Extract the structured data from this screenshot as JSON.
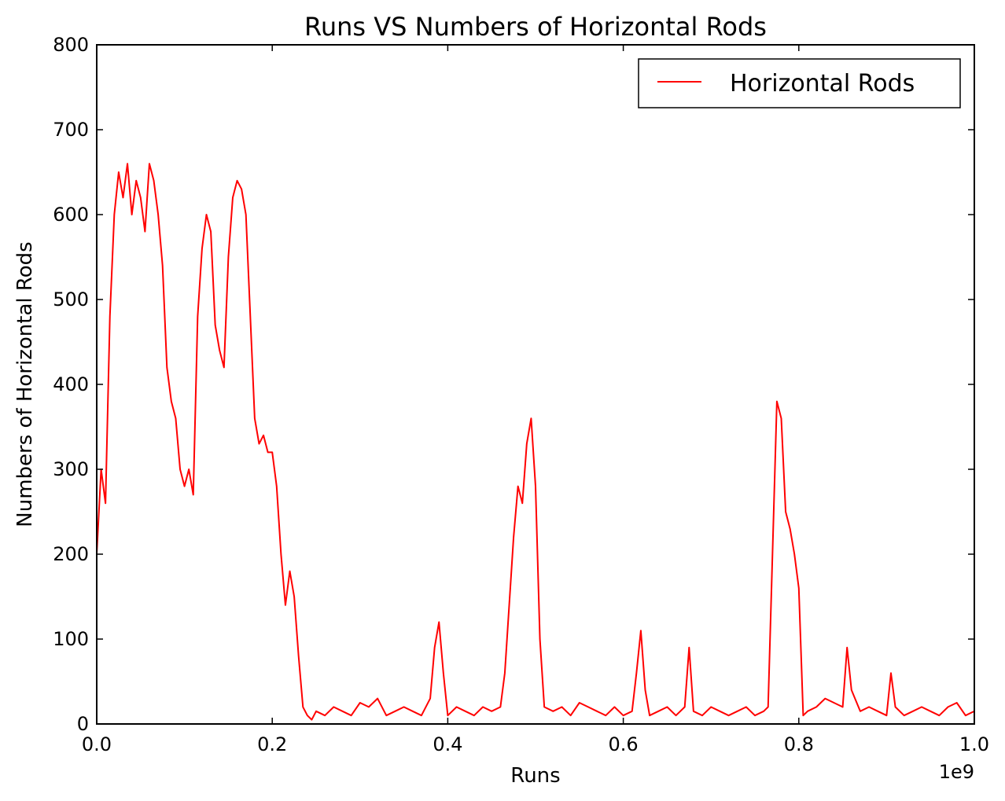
{
  "chart_data": {
    "type": "line",
    "title": "Runs VS Numbers of Horizontal Rods",
    "xlabel": "Runs",
    "ylabel": "Numbers of Horizontal Rods",
    "x_offset_label": "1e9",
    "xlim": [
      0.0,
      1.0
    ],
    "ylim": [
      0,
      800
    ],
    "x_ticks": [
      0.0,
      0.2,
      0.4,
      0.6,
      0.8,
      1.0
    ],
    "x_tick_labels": [
      "0.0",
      "0.2",
      "0.4",
      "0.6",
      "0.8",
      "1.0"
    ],
    "y_ticks": [
      0,
      100,
      200,
      300,
      400,
      500,
      600,
      700,
      800
    ],
    "y_tick_labels": [
      "0",
      "100",
      "200",
      "300",
      "400",
      "500",
      "600",
      "700",
      "800"
    ],
    "grid": false,
    "legend_position": "top-right",
    "series": [
      {
        "name": "Horizontal Rods",
        "color": "#ff0000",
        "x": [
          0.0,
          0.005,
          0.01,
          0.015,
          0.02,
          0.025,
          0.03,
          0.035,
          0.04,
          0.045,
          0.05,
          0.055,
          0.06,
          0.065,
          0.07,
          0.075,
          0.08,
          0.085,
          0.09,
          0.095,
          0.1,
          0.105,
          0.11,
          0.115,
          0.12,
          0.125,
          0.13,
          0.135,
          0.14,
          0.145,
          0.15,
          0.155,
          0.16,
          0.165,
          0.17,
          0.175,
          0.18,
          0.185,
          0.19,
          0.195,
          0.2,
          0.205,
          0.21,
          0.215,
          0.22,
          0.225,
          0.23,
          0.235,
          0.24,
          0.245,
          0.25,
          0.26,
          0.27,
          0.28,
          0.29,
          0.3,
          0.31,
          0.32,
          0.33,
          0.34,
          0.35,
          0.36,
          0.37,
          0.38,
          0.385,
          0.39,
          0.395,
          0.4,
          0.41,
          0.42,
          0.43,
          0.44,
          0.45,
          0.46,
          0.465,
          0.47,
          0.475,
          0.48,
          0.485,
          0.49,
          0.495,
          0.5,
          0.505,
          0.51,
          0.52,
          0.53,
          0.54,
          0.55,
          0.56,
          0.57,
          0.58,
          0.59,
          0.6,
          0.61,
          0.615,
          0.62,
          0.625,
          0.63,
          0.64,
          0.65,
          0.66,
          0.67,
          0.675,
          0.68,
          0.69,
          0.7,
          0.71,
          0.72,
          0.73,
          0.74,
          0.75,
          0.76,
          0.765,
          0.77,
          0.775,
          0.78,
          0.785,
          0.79,
          0.795,
          0.8,
          0.805,
          0.81,
          0.82,
          0.83,
          0.84,
          0.85,
          0.855,
          0.86,
          0.87,
          0.88,
          0.89,
          0.9,
          0.905,
          0.91,
          0.92,
          0.93,
          0.94,
          0.95,
          0.96,
          0.97,
          0.98,
          0.99,
          1.0
        ],
        "y": [
          200,
          300,
          260,
          480,
          600,
          650,
          620,
          660,
          600,
          640,
          620,
          580,
          660,
          640,
          600,
          540,
          420,
          380,
          360,
          300,
          280,
          300,
          270,
          480,
          560,
          600,
          580,
          470,
          440,
          420,
          550,
          620,
          640,
          630,
          600,
          480,
          360,
          330,
          340,
          320,
          320,
          280,
          200,
          140,
          180,
          150,
          80,
          20,
          10,
          5,
          15,
          10,
          20,
          15,
          10,
          25,
          20,
          30,
          10,
          15,
          20,
          15,
          10,
          30,
          90,
          120,
          60,
          10,
          20,
          15,
          10,
          20,
          15,
          20,
          60,
          140,
          220,
          280,
          260,
          330,
          360,
          280,
          100,
          20,
          15,
          20,
          10,
          25,
          20,
          15,
          10,
          20,
          10,
          15,
          60,
          110,
          40,
          10,
          15,
          20,
          10,
          20,
          90,
          15,
          10,
          20,
          15,
          10,
          15,
          20,
          10,
          15,
          20,
          200,
          380,
          360,
          250,
          230,
          200,
          160,
          10,
          15,
          20,
          30,
          25,
          20,
          90,
          40,
          15,
          20,
          15,
          10,
          60,
          20,
          10,
          15,
          20,
          15,
          10,
          20,
          25,
          10,
          15
        ]
      }
    ]
  }
}
